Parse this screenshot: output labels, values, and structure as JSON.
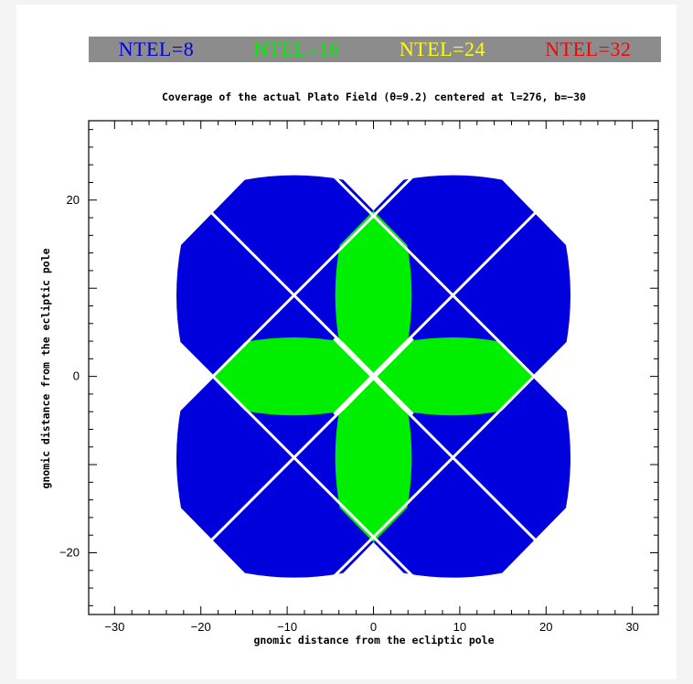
{
  "chart_data": {
    "type": "scatter",
    "title": "Coverage of the actual Plato Field (θ=9.2) centered at l=276, b=−30",
    "xlabel": "gnomic distance from the ecliptic pole",
    "ylabel": "gnomic distance from the ecliptic pole",
    "xlim": [
      -33,
      33
    ],
    "ylim": [
      -27,
      29
    ],
    "xticks": [
      -30,
      -20,
      -10,
      0,
      10,
      20,
      30
    ],
    "xtick_labels": [
      "−30",
      "−20",
      "−10",
      "0",
      "10",
      "20",
      "30"
    ],
    "yticks": [
      -20,
      0,
      20
    ],
    "ytick_labels": [
      "−20",
      "0",
      "20"
    ],
    "legend_position": "top",
    "series": [
      {
        "name": "NTEL=8",
        "color": "#0000dd"
      },
      {
        "name": "NTEL=16",
        "color": "#00ee00"
      },
      {
        "name": "NTEL=24",
        "color": "#ffff00"
      },
      {
        "name": "NTEL=32",
        "color": "#ff0000"
      }
    ],
    "camera_group_field_centers": [
      [
        9.2,
        9.2
      ],
      [
        -9.2,
        9.2
      ],
      [
        -9.2,
        -9.2
      ],
      [
        9.2,
        -9.2
      ]
    ],
    "field_halfwidth_deg": 18.8,
    "field_diagonal_halfwidth_deg": 24.5
  },
  "legend_text": [
    "NTEL=8",
    "NTEL=16",
    "NTEL=24",
    "NTEL=32"
  ]
}
